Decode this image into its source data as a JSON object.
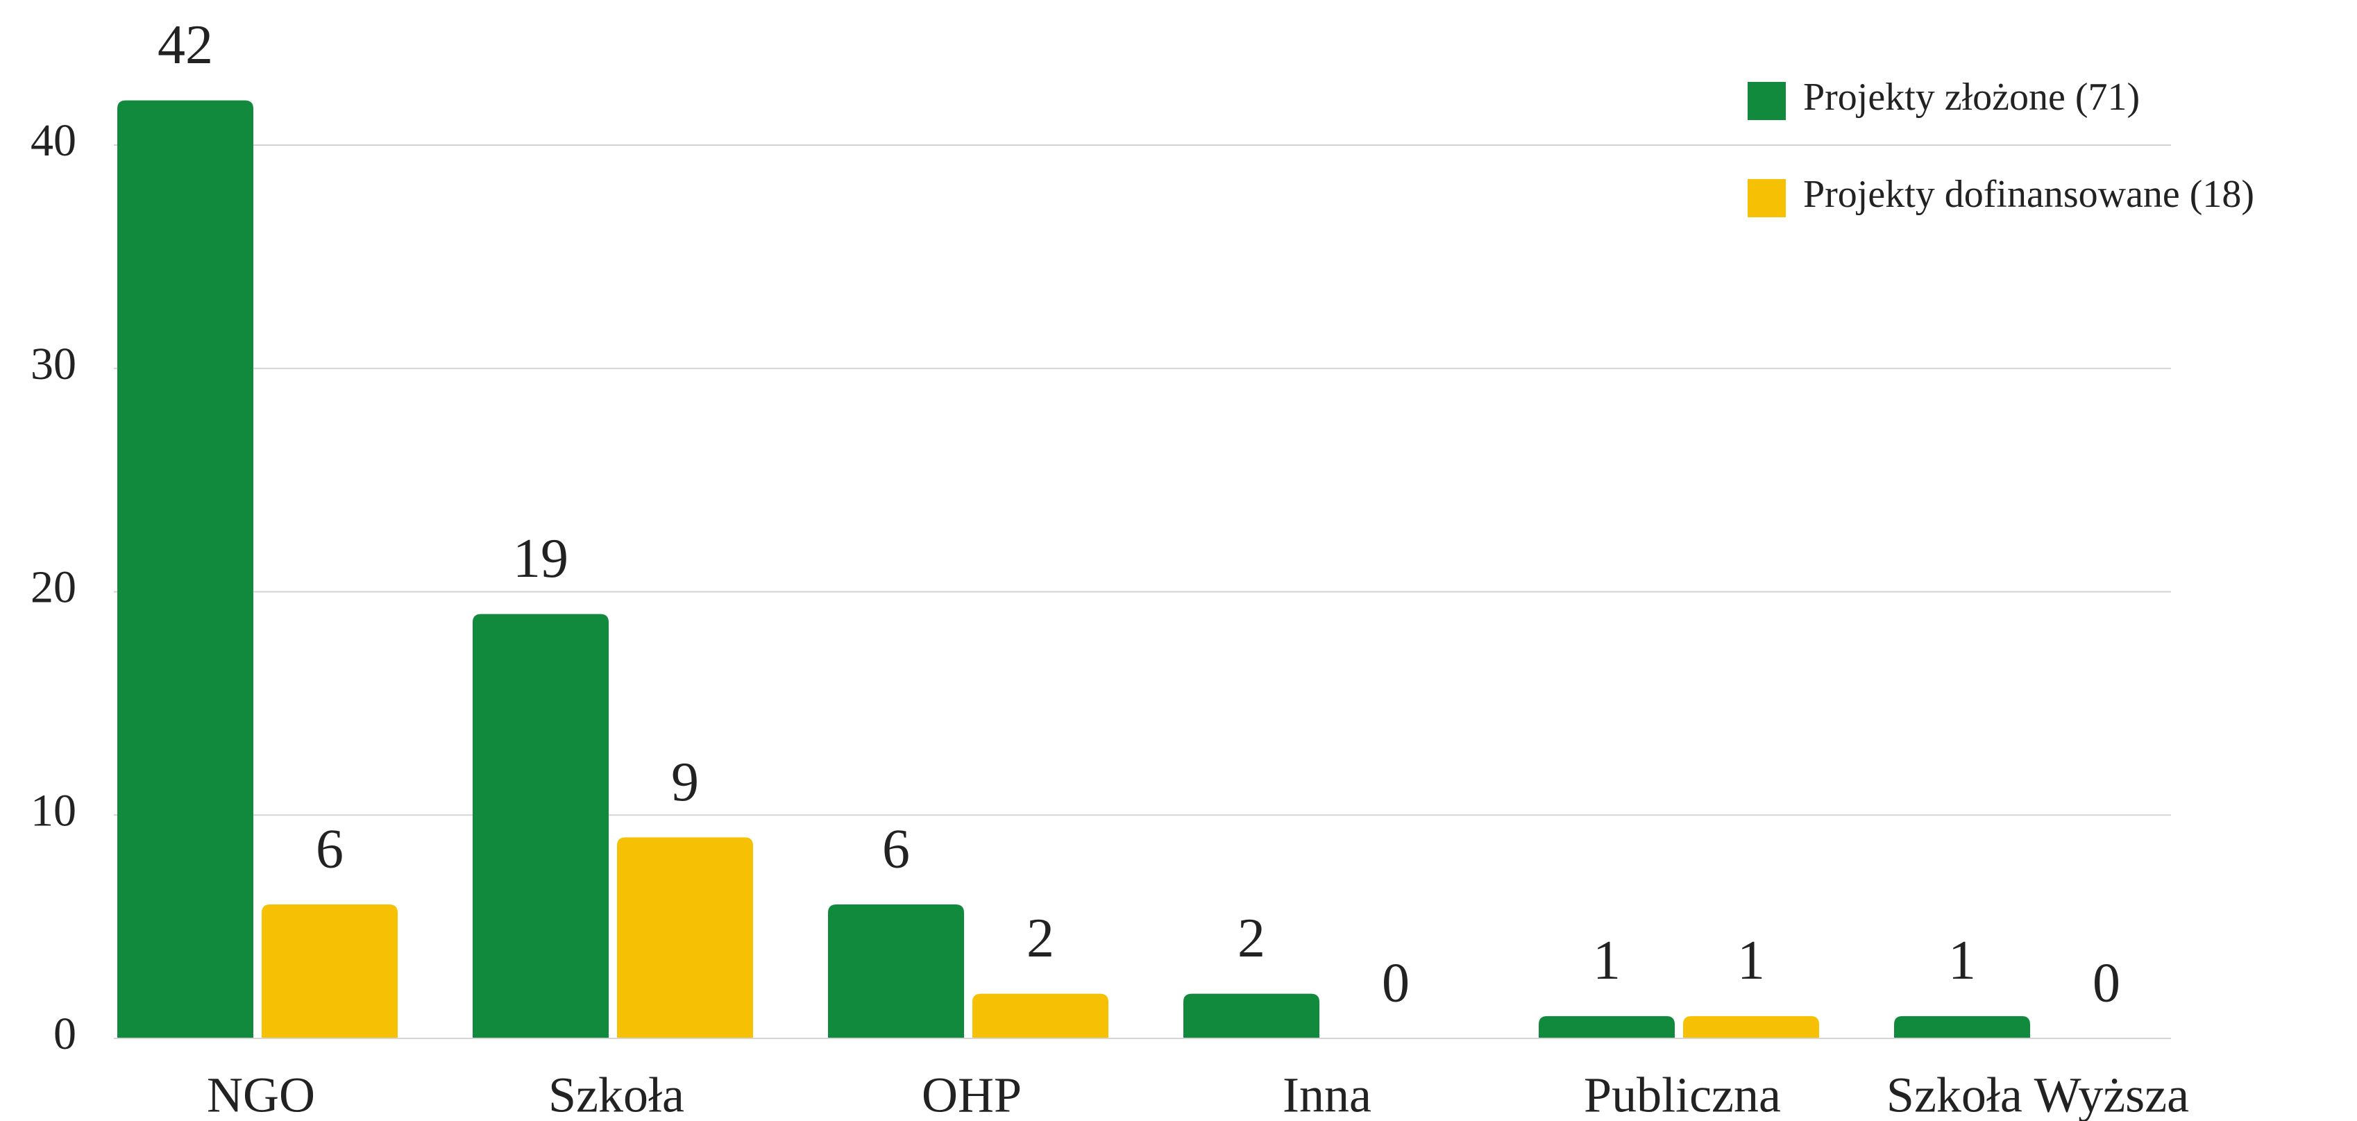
{
  "chart_data": {
    "type": "bar",
    "categories": [
      "NGO",
      "Szkoła",
      "OHP",
      "Inna",
      "Publiczna",
      "Szkoła Wyższa"
    ],
    "series": [
      {
        "name": "Projekty złożone (71)",
        "color": "#128a3e",
        "values": [
          42,
          19,
          6,
          2,
          1,
          1
        ]
      },
      {
        "name": "Projekty dofinansowane (18)",
        "color": "#f6c105",
        "values": [
          6,
          9,
          2,
          0,
          1,
          0
        ]
      }
    ],
    "ylim": [
      0,
      40
    ],
    "yticks": [
      0,
      10,
      20,
      30,
      40
    ],
    "grid": true,
    "legend": "top-right"
  }
}
